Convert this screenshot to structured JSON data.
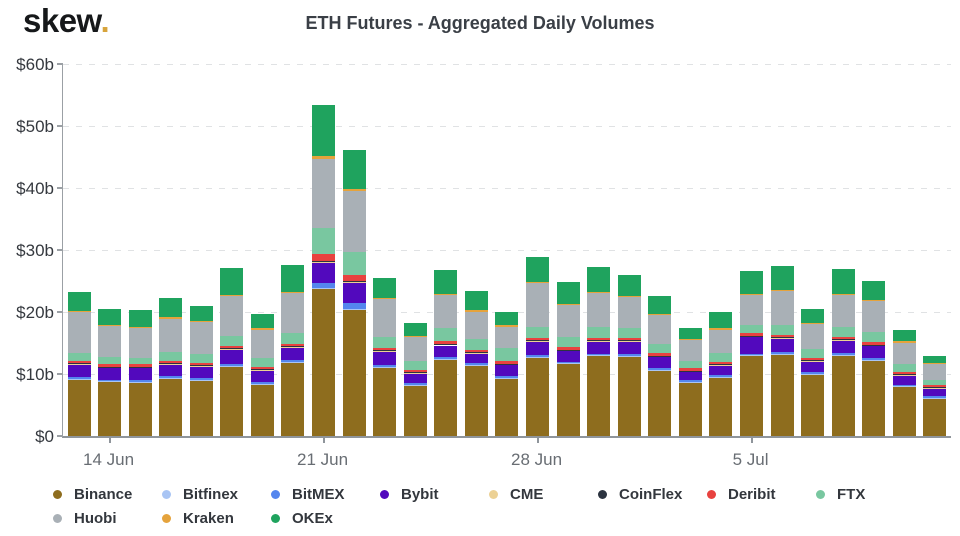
{
  "brand": {
    "name": "skew",
    "dot": "."
  },
  "chart_data": {
    "type": "bar",
    "variant": "stacked",
    "title": "ETH Futures - Aggregated Daily Volumes",
    "xlabel": "",
    "ylabel": "",
    "ylim": [
      0,
      60
    ],
    "grid": "horizontal-dashed",
    "legend_position": "bottom",
    "y_tick_values": [
      0,
      10,
      20,
      30,
      40,
      50,
      60
    ],
    "y_tick_labels": [
      "$0",
      "$10b",
      "$20b",
      "$30b",
      "$40b",
      "$50b",
      "$60b"
    ],
    "x_ticks": [
      {
        "index": 1,
        "label": "14 Jun"
      },
      {
        "index": 8,
        "label": "21 Jun"
      },
      {
        "index": 15,
        "label": "28 Jun"
      },
      {
        "index": 22,
        "label": "5 Jul"
      }
    ],
    "categories": [
      "13 Jun",
      "14 Jun",
      "15 Jun",
      "16 Jun",
      "17 Jun",
      "18 Jun",
      "19 Jun",
      "20 Jun",
      "21 Jun",
      "22 Jun",
      "23 Jun",
      "24 Jun",
      "25 Jun",
      "26 Jun",
      "27 Jun",
      "28 Jun",
      "29 Jun",
      "30 Jun",
      "1 Jul",
      "2 Jul",
      "3 Jul",
      "4 Jul",
      "5 Jul",
      "6 Jul",
      "7 Jul",
      "8 Jul",
      "9 Jul",
      "10 Jul",
      "11 Jul"
    ],
    "value_unit": "$b",
    "series": [
      {
        "name": "Binance",
        "color": "#8e6d1e",
        "values": [
          9.1,
          8.7,
          8.6,
          9.2,
          9.0,
          11.2,
          8.3,
          11.8,
          23.8,
          20.3,
          11.1,
          8.1,
          12.3,
          11.3,
          9.2,
          12.6,
          11.6,
          12.9,
          12.8,
          10.6,
          8.6,
          9.4,
          12.9,
          13.1,
          9.9,
          13.0,
          12.2,
          7.9,
          6.0
        ]
      },
      {
        "name": "Bitfinex",
        "color": "#a9c5f4",
        "values": [
          0.1,
          0.1,
          0.1,
          0.1,
          0.1,
          0.1,
          0.1,
          0.1,
          0.15,
          0.2,
          0.1,
          0.1,
          0.1,
          0.1,
          0.1,
          0.1,
          0.1,
          0.1,
          0.1,
          0.1,
          0.1,
          0.1,
          0.1,
          0.1,
          0.1,
          0.1,
          0.1,
          0.1,
          0.1
        ]
      },
      {
        "name": "BitMEX",
        "color": "#5486ee",
        "values": [
          0.3,
          0.3,
          0.3,
          0.3,
          0.3,
          0.3,
          0.3,
          0.3,
          0.8,
          1.0,
          0.3,
          0.3,
          0.3,
          0.3,
          0.3,
          0.3,
          0.3,
          0.3,
          0.3,
          0.3,
          0.3,
          0.3,
          0.3,
          0.3,
          0.3,
          0.3,
          0.3,
          0.3,
          0.3
        ]
      },
      {
        "name": "Bybit",
        "color": "#5209bd",
        "values": [
          2.0,
          1.8,
          1.9,
          1.9,
          1.8,
          2.3,
          1.8,
          2.0,
          3.1,
          3.2,
          2.1,
          1.5,
          1.9,
          1.6,
          1.8,
          2.2,
          1.7,
          1.9,
          2.0,
          1.7,
          1.3,
          1.5,
          2.6,
          2.2,
          1.7,
          2.0,
          1.9,
          1.4,
          1.2
        ]
      },
      {
        "name": "CME",
        "color": "#ecd195",
        "values": [
          0.2,
          0.2,
          0.2,
          0.2,
          0.2,
          0.2,
          0.2,
          0.2,
          0.3,
          0.3,
          0.2,
          0.2,
          0.2,
          0.2,
          0.2,
          0.2,
          0.2,
          0.2,
          0.2,
          0.2,
          0.2,
          0.2,
          0.2,
          0.2,
          0.2,
          0.2,
          0.2,
          0.2,
          0.2
        ]
      },
      {
        "name": "CoinFlex",
        "color": "#2c3440",
        "values": [
          0.05,
          0.05,
          0.05,
          0.05,
          0.05,
          0.05,
          0.05,
          0.05,
          0.05,
          0.05,
          0.05,
          0.05,
          0.05,
          0.05,
          0.05,
          0.05,
          0.05,
          0.05,
          0.05,
          0.05,
          0.05,
          0.05,
          0.05,
          0.05,
          0.05,
          0.05,
          0.05,
          0.05,
          0.05
        ]
      },
      {
        "name": "Deribit",
        "color": "#e8423f",
        "values": [
          0.4,
          0.4,
          0.4,
          0.4,
          0.4,
          0.4,
          0.4,
          0.4,
          1.2,
          1.0,
          0.4,
          0.4,
          0.4,
          0.4,
          0.4,
          0.4,
          0.4,
          0.4,
          0.4,
          0.4,
          0.4,
          0.4,
          0.4,
          0.4,
          0.4,
          0.4,
          0.4,
          0.4,
          0.3
        ]
      },
      {
        "name": "FTX",
        "color": "#79c7a0",
        "values": [
          1.3,
          1.2,
          1.1,
          1.4,
          1.3,
          1.6,
          1.5,
          1.7,
          4.1,
          3.6,
          1.8,
          1.5,
          2.1,
          1.7,
          2.2,
          1.8,
          1.6,
          1.7,
          1.5,
          1.5,
          1.1,
          1.4,
          1.4,
          1.5,
          1.4,
          1.6,
          1.7,
          1.3,
          0.9
        ]
      },
      {
        "name": "Huobi",
        "color": "#a9b0b6",
        "values": [
          6.5,
          5.0,
          4.8,
          5.4,
          5.2,
          6.4,
          4.5,
          6.5,
          11.2,
          9.8,
          6.0,
          3.8,
          5.4,
          4.4,
          3.4,
          7.0,
          5.2,
          5.5,
          5.0,
          4.6,
          3.4,
          3.8,
          4.8,
          5.5,
          4.0,
          5.1,
          4.9,
          3.4,
          2.5
        ]
      },
      {
        "name": "Kraken",
        "color": "#e5a33c",
        "values": [
          0.2,
          0.2,
          0.2,
          0.2,
          0.2,
          0.2,
          0.2,
          0.2,
          0.4,
          0.35,
          0.2,
          0.2,
          0.2,
          0.2,
          0.2,
          0.2,
          0.2,
          0.2,
          0.2,
          0.2,
          0.2,
          0.2,
          0.2,
          0.2,
          0.2,
          0.2,
          0.2,
          0.2,
          0.2
        ]
      },
      {
        "name": "OKEx",
        "color": "#1fa35e",
        "values": [
          3.1,
          2.6,
          2.6,
          3.1,
          2.5,
          4.4,
          2.4,
          4.4,
          8.3,
          6.3,
          3.2,
          2.0,
          3.9,
          3.2,
          2.1,
          4.0,
          3.5,
          4.0,
          3.5,
          2.9,
          1.8,
          2.6,
          3.7,
          3.9,
          2.2,
          4.0,
          3.1,
          1.9,
          1.2
        ]
      }
    ]
  }
}
